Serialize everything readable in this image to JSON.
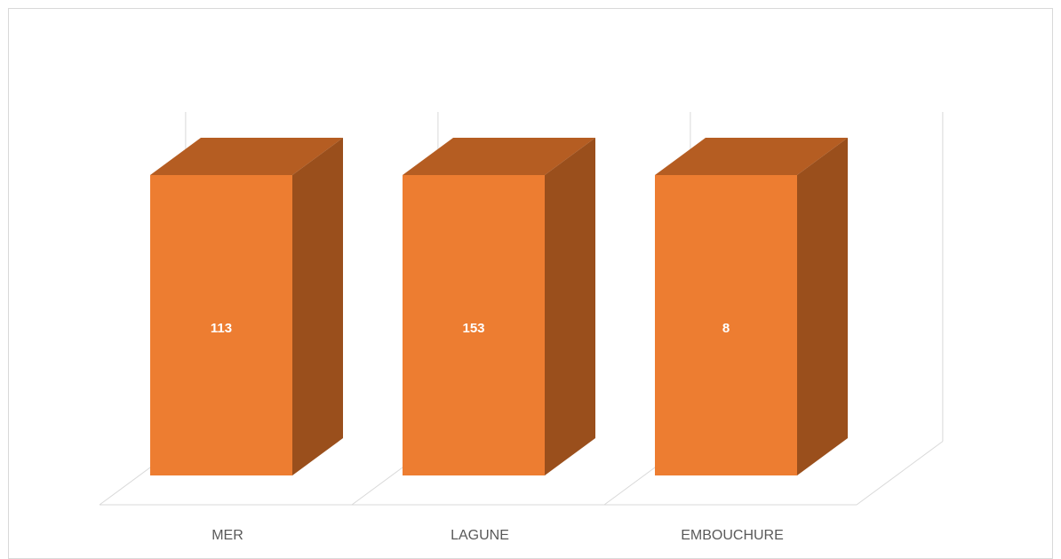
{
  "chart_data": {
    "type": "bar",
    "style": "3d-column",
    "categories": [
      "MER",
      "LAGUNE",
      "EMBOUCHURE"
    ],
    "series": [
      {
        "values": [
          113,
          153,
          8
        ]
      }
    ],
    "data_labels": [
      "113",
      "153",
      "8"
    ],
    "title": "",
    "xlabel": "",
    "ylabel": "",
    "grid": true,
    "legend": "none",
    "colors": {
      "front": "#ED7D31",
      "top": "#B55D22",
      "side": "#9A4F1C",
      "grid": "#d9d9d9",
      "label": "#595959"
    }
  }
}
